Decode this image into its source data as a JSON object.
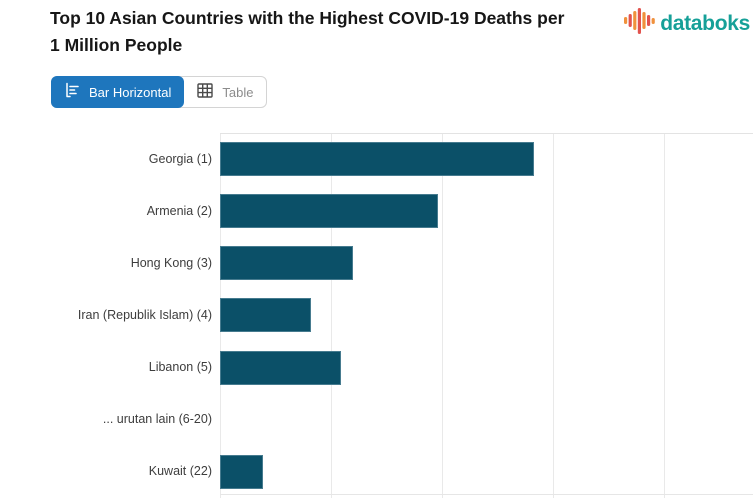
{
  "header": {
    "title_line1": "Top 10 Asian Countries with the Highest COVID-19 Deaths per",
    "title_line2": "1 Million People",
    "logo_text": "databoks"
  },
  "toolbar": {
    "bar_button_label": "Bar Horizontal",
    "table_button_label": "Table",
    "active_view": "Bar Horizontal"
  },
  "colors": {
    "accent_blue": "#1E76BD",
    "bar_teal": "#0B5068",
    "logo_orange": "#F0913C",
    "logo_red": "#E2524D",
    "logo_text_teal": "#16A098",
    "gridline_gray": "#E9E9E9"
  },
  "chart_data": {
    "type": "bar",
    "orientation": "horizontal",
    "title": "Top 10 Asian Countries with the Highest COVID-19 Deaths per 1 Million People",
    "categories": [
      "Georgia (1)",
      "Armenia (2)",
      "Hong Kong (3)",
      "Iran (Republik Islam) (4)",
      "Libanon (5)",
      "... urutan lain (6-20)",
      "Kuwait (22)"
    ],
    "values": [
      2830,
      1960,
      1200,
      820,
      1090,
      null,
      390
    ],
    "xlim": [
      0,
      4800
    ],
    "gridline_interval": 1000,
    "x_axis_labels_visible": false,
    "grid": true,
    "legend": false,
    "bar_color": "#0B5068"
  }
}
